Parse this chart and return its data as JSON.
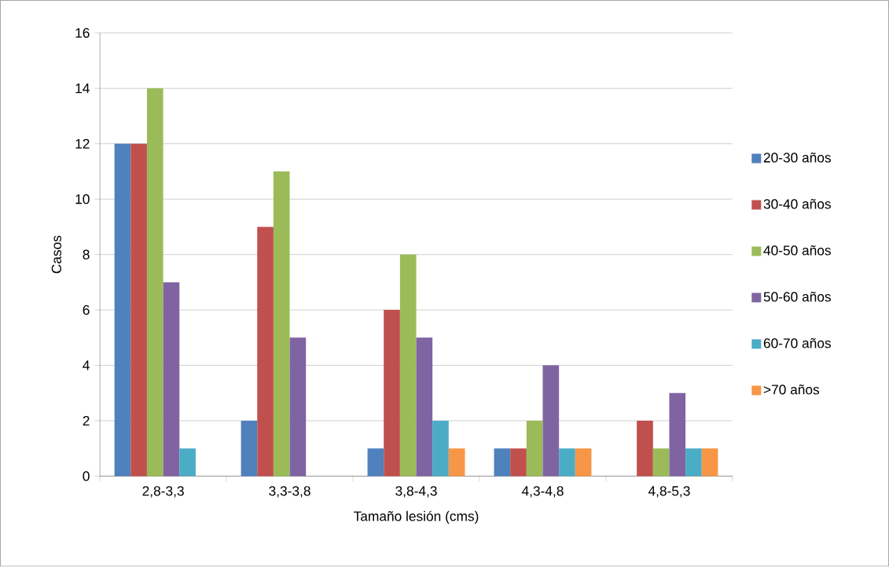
{
  "chart_data": {
    "type": "bar",
    "xlabel": "Tamaño lesión (cms)",
    "ylabel": "Casos",
    "categories": [
      "2,8-3,3",
      "3,3-3,8",
      "3,8-4,3",
      "4,3-4,8",
      "4,8-5,3"
    ],
    "series": [
      {
        "name": "20-30 años",
        "color": "#4f81bd",
        "values": [
          12,
          2,
          1,
          1,
          0
        ]
      },
      {
        "name": "30-40 años",
        "color": "#c0504d",
        "values": [
          12,
          9,
          6,
          1,
          2
        ]
      },
      {
        "name": "40-50 años",
        "color": "#9bbb59",
        "values": [
          14,
          11,
          8,
          2,
          1
        ]
      },
      {
        "name": "50-60 años",
        "color": "#8064a2",
        "values": [
          7,
          5,
          5,
          4,
          3
        ]
      },
      {
        "name": "60-70 años",
        "color": "#4bacc6",
        "values": [
          1,
          0,
          2,
          1,
          1
        ]
      },
      {
        "name": ">70 años",
        "color": "#f79646",
        "values": [
          0,
          0,
          1,
          1,
          1
        ]
      }
    ],
    "ylim": [
      0,
      16
    ],
    "yticks": [
      0,
      2,
      4,
      6,
      8,
      10,
      12,
      14,
      16
    ],
    "grid": "y",
    "legend": "right"
  }
}
